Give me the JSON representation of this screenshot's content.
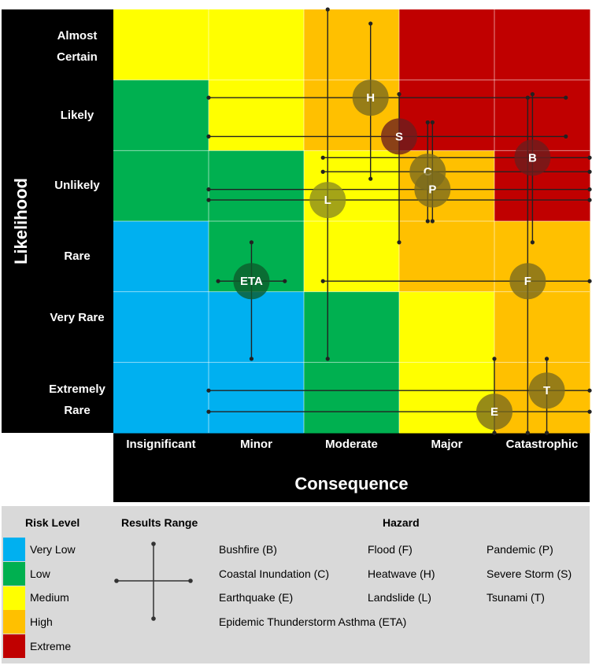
{
  "chart_data": {
    "type": "heatmap",
    "title": "",
    "xlabel": "Consequence",
    "ylabel": "Likelihood",
    "x_categories": [
      "Insignificant",
      "Minor",
      "Moderate",
      "Major",
      "Catastrophic"
    ],
    "y_categories": [
      "Almost Certain",
      "Likely",
      "Unlikely",
      "Rare",
      "Very Rare",
      "Extremely Rare"
    ],
    "colors": {
      "Very Low": "#00b0f0",
      "Low": "#00b050",
      "Medium": "#ffff00",
      "High": "#ffc000",
      "Extreme": "#c00000"
    },
    "risk_grid": [
      [
        "Medium",
        "Medium",
        "High",
        "Extreme",
        "Extreme"
      ],
      [
        "Low",
        "Medium",
        "High",
        "Extreme",
        "Extreme"
      ],
      [
        "Low",
        "Low",
        "Medium",
        "High",
        "Extreme"
      ],
      [
        "Very Low",
        "Low",
        "Medium",
        "High",
        "High"
      ],
      [
        "Very Low",
        "Very Low",
        "Low",
        "Medium",
        "High"
      ],
      [
        "Very Low",
        "Very Low",
        "Low",
        "Medium",
        "High"
      ]
    ],
    "hazards": [
      {
        "code": "H",
        "x": 2.7,
        "y": 4.75,
        "x_range": [
          1.0,
          4.75
        ],
        "y_range": [
          3.6,
          5.8
        ]
      },
      {
        "code": "S",
        "x": 3.0,
        "y": 4.2,
        "x_range": [
          1.0,
          4.75
        ],
        "y_range": [
          2.7,
          4.8
        ]
      },
      {
        "code": "B",
        "x": 4.4,
        "y": 3.9,
        "x_range": [
          2.2,
          5.0
        ],
        "y_range": [
          2.7,
          4.8
        ]
      },
      {
        "code": "C",
        "x": 3.3,
        "y": 3.7,
        "x_range": [
          2.2,
          5.0
        ],
        "y_range": [
          3.0,
          4.4
        ]
      },
      {
        "code": "P",
        "x": 3.35,
        "y": 3.45,
        "x_range": [
          1.0,
          5.0
        ],
        "y_range": [
          3.0,
          4.4
        ]
      },
      {
        "code": "L",
        "x": 2.25,
        "y": 3.3,
        "x_range": [
          1.0,
          5.0
        ],
        "y_range": [
          1.05,
          6.0
        ]
      },
      {
        "code": "ETA",
        "x": 1.45,
        "y": 2.15,
        "x_range": [
          1.1,
          1.8
        ],
        "y_range": [
          1.05,
          2.7
        ]
      },
      {
        "code": "F",
        "x": 4.35,
        "y": 2.15,
        "x_range": [
          2.2,
          5.0
        ],
        "y_range": [
          0.0,
          4.75
        ]
      },
      {
        "code": "T",
        "x": 4.55,
        "y": 0.6,
        "x_range": [
          1.0,
          5.0
        ],
        "y_range": [
          0.0,
          1.05
        ]
      },
      {
        "code": "E",
        "x": 4.0,
        "y": 0.3,
        "x_range": [
          1.0,
          5.0
        ],
        "y_range": [
          0.0,
          1.05
        ]
      }
    ]
  },
  "legend": {
    "risk_title": "Risk Level",
    "range_title": "Results Range",
    "hazard_title": "Hazard",
    "levels": [
      {
        "label": "Very Low",
        "color": "#00b0f0"
      },
      {
        "label": "Low",
        "color": "#00b050"
      },
      {
        "label": "Medium",
        "color": "#ffff00"
      },
      {
        "label": "High",
        "color": "#ffc000"
      },
      {
        "label": "Extreme",
        "color": "#c00000"
      }
    ],
    "hazards": [
      "Bushfire (B)",
      "Flood (F)",
      "Pandemic (P)",
      "Coastal Inundation (C)",
      "Heatwave (H)",
      "Severe Storm (S)",
      "Earthquake (E)",
      "Landslide (L)",
      "Tsunami (T)",
      "Epidemic Thunderstorm Asthma (ETA)"
    ]
  }
}
